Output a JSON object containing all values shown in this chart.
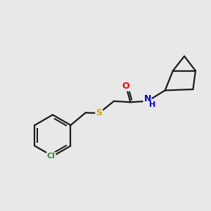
{
  "background_color": "#e8e8e8",
  "figsize": [
    3.0,
    3.0
  ],
  "dpi": 100,
  "bond_color": "#1a1a1a",
  "bond_width": 1.6,
  "atom_colors": {
    "O": "#ff0000",
    "N": "#0000cd",
    "S": "#ccaa00",
    "Cl": "#2e8b2e",
    "H": "#0000cd",
    "C": "#1a1a1a"
  },
  "font_size": 9,
  "xlim": [
    0,
    10
  ],
  "ylim": [
    0,
    10
  ]
}
